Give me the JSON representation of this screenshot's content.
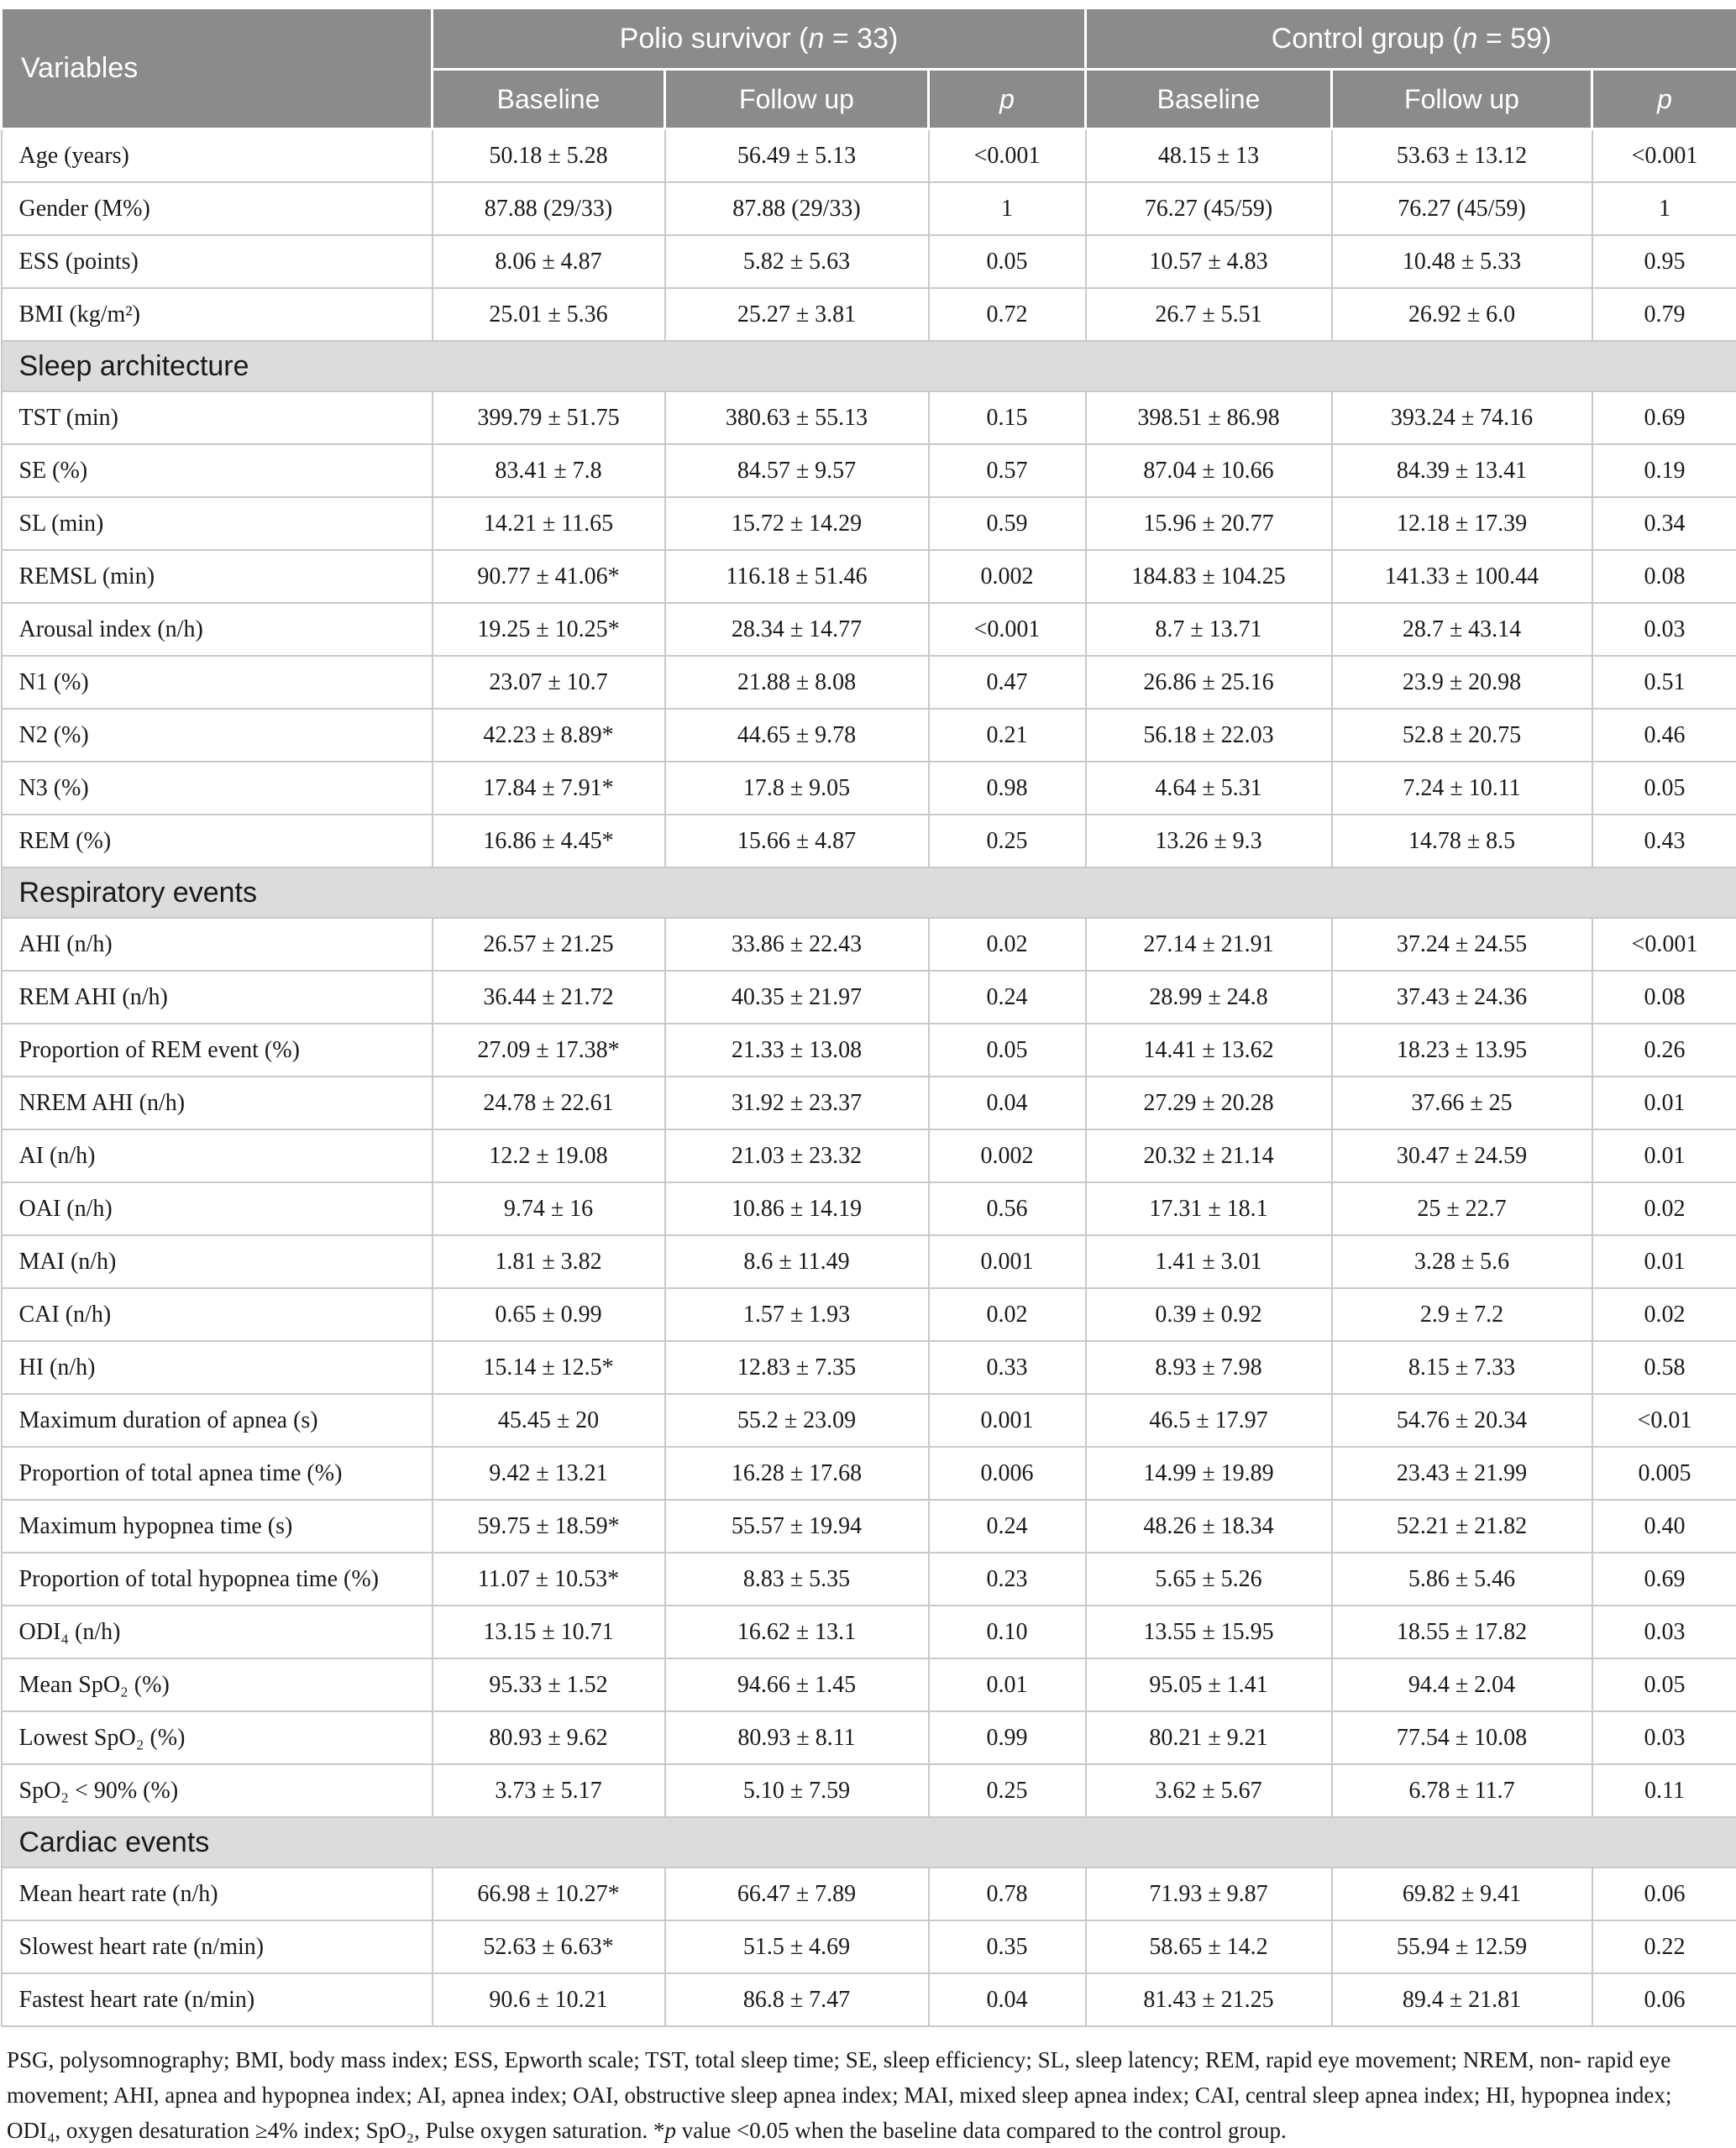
{
  "table": {
    "columns": {
      "variables_label": "Variables",
      "groups": [
        {
          "prefix": "Polio survivor (",
          "n": "n",
          "suffix": " = 33)"
        },
        {
          "prefix": "Control group (",
          "n": "n",
          "suffix": " = 59)"
        }
      ],
      "subheaders": [
        {
          "label": "Baseline",
          "italic": false
        },
        {
          "label": "Follow up",
          "italic": false
        },
        {
          "label": "p",
          "italic": true
        },
        {
          "label": "Baseline",
          "italic": false
        },
        {
          "label": "Follow up",
          "italic": false
        },
        {
          "label": "p",
          "italic": true
        }
      ]
    },
    "rows": [
      {
        "label": "Age (years)",
        "cells": [
          "50.18 ± 5.28",
          "56.49 ± 5.13",
          "<0.001",
          "48.15 ± 13",
          "53.63 ± 13.12",
          "<0.001"
        ]
      },
      {
        "label": "Gender (M%)",
        "cells": [
          "87.88 (29/33)",
          "87.88 (29/33)",
          "1",
          "76.27 (45/59)",
          "76.27 (45/59)",
          "1"
        ]
      },
      {
        "label": "ESS (points)",
        "cells": [
          "8.06 ± 4.87",
          "5.82 ± 5.63",
          "0.05",
          "10.57 ± 4.83",
          "10.48 ± 5.33",
          "0.95"
        ]
      },
      {
        "label": "BMI (kg/m²)",
        "cells": [
          "25.01 ± 5.36",
          "25.27 ± 3.81",
          "0.72",
          "26.7 ± 5.51",
          "26.92 ± 6.0",
          "0.79"
        ]
      },
      {
        "section": "Sleep architecture"
      },
      {
        "label": "TST (min)",
        "cells": [
          "399.79 ± 51.75",
          "380.63 ± 55.13",
          "0.15",
          "398.51 ± 86.98",
          "393.24 ± 74.16",
          "0.69"
        ]
      },
      {
        "label": "SE (%)",
        "cells": [
          "83.41 ± 7.8",
          "84.57 ± 9.57",
          "0.57",
          "87.04 ± 10.66",
          "84.39 ± 13.41",
          "0.19"
        ]
      },
      {
        "label": "SL (min)",
        "cells": [
          "14.21 ± 11.65",
          "15.72 ± 14.29",
          "0.59",
          "15.96 ± 20.77",
          "12.18 ± 17.39",
          "0.34"
        ]
      },
      {
        "label": "REMSL (min)",
        "cells": [
          "90.77 ± 41.06*",
          "116.18 ± 51.46",
          "0.002",
          "184.83 ± 104.25",
          "141.33 ± 100.44",
          "0.08"
        ]
      },
      {
        "label": "Arousal index (n/h)",
        "cells": [
          "19.25 ± 10.25*",
          "28.34 ± 14.77",
          "<0.001",
          "8.7 ± 13.71",
          "28.7 ± 43.14",
          "0.03"
        ]
      },
      {
        "label": "N1 (%)",
        "cells": [
          "23.07 ± 10.7",
          "21.88 ± 8.08",
          "0.47",
          "26.86 ± 25.16",
          "23.9 ± 20.98",
          "0.51"
        ]
      },
      {
        "label": "N2 (%)",
        "cells": [
          "42.23 ± 8.89*",
          "44.65 ± 9.78",
          "0.21",
          "56.18 ± 22.03",
          "52.8 ± 20.75",
          "0.46"
        ]
      },
      {
        "label": "N3 (%)",
        "cells": [
          "17.84 ± 7.91*",
          "17.8 ± 9.05",
          "0.98",
          "4.64 ± 5.31",
          "7.24 ± 10.11",
          "0.05"
        ]
      },
      {
        "label": "REM (%)",
        "cells": [
          "16.86 ± 4.45*",
          "15.66 ± 4.87",
          "0.25",
          "13.26 ± 9.3",
          "14.78 ± 8.5",
          "0.43"
        ]
      },
      {
        "section": "Respiratory events"
      },
      {
        "label": "AHI (n/h)",
        "cells": [
          "26.57 ± 21.25",
          "33.86 ± 22.43",
          "0.02",
          "27.14 ± 21.91",
          "37.24 ± 24.55",
          "<0.001"
        ]
      },
      {
        "label": "REM AHI (n/h)",
        "cells": [
          "36.44 ± 21.72",
          "40.35 ± 21.97",
          "0.24",
          "28.99 ± 24.8",
          "37.43 ± 24.36",
          "0.08"
        ]
      },
      {
        "label": "Proportion of REM event (%)",
        "cells": [
          "27.09 ± 17.38*",
          "21.33 ± 13.08",
          "0.05",
          "14.41 ± 13.62",
          "18.23 ± 13.95",
          "0.26"
        ]
      },
      {
        "label": "NREM AHI (n/h)",
        "cells": [
          "24.78 ± 22.61",
          "31.92 ± 23.37",
          "0.04",
          "27.29 ± 20.28",
          "37.66 ± 25",
          "0.01"
        ]
      },
      {
        "label": "AI (n/h)",
        "cells": [
          "12.2 ± 19.08",
          "21.03 ± 23.32",
          "0.002",
          "20.32 ± 21.14",
          "30.47 ± 24.59",
          "0.01"
        ]
      },
      {
        "label": "OAI (n/h)",
        "cells": [
          "9.74 ± 16",
          "10.86 ± 14.19",
          "0.56",
          "17.31 ± 18.1",
          "25 ± 22.7",
          "0.02"
        ]
      },
      {
        "label": "MAI (n/h)",
        "cells": [
          "1.81 ± 3.82",
          "8.6 ± 11.49",
          "0.001",
          "1.41 ± 3.01",
          "3.28 ± 5.6",
          "0.01"
        ]
      },
      {
        "label": "CAI (n/h)",
        "cells": [
          "0.65 ± 0.99",
          "1.57 ± 1.93",
          "0.02",
          "0.39 ± 0.92",
          "2.9 ± 7.2",
          "0.02"
        ]
      },
      {
        "label": "HI (n/h)",
        "cells": [
          "15.14 ± 12.5*",
          "12.83 ± 7.35",
          "0.33",
          "8.93 ± 7.98",
          "8.15 ± 7.33",
          "0.58"
        ]
      },
      {
        "label": "Maximum duration of apnea (s)",
        "cells": [
          "45.45 ± 20",
          "55.2 ± 23.09",
          "0.001",
          "46.5 ± 17.97",
          "54.76 ± 20.34",
          "<0.01"
        ]
      },
      {
        "label": "Proportion of total apnea time (%)",
        "cells": [
          "9.42 ± 13.21",
          "16.28 ± 17.68",
          "0.006",
          "14.99 ± 19.89",
          "23.43 ± 21.99",
          "0.005"
        ]
      },
      {
        "label": "Maximum hypopnea time (s)",
        "cells": [
          "59.75 ± 18.59*",
          "55.57 ± 19.94",
          "0.24",
          "48.26 ± 18.34",
          "52.21 ± 21.82",
          "0.40"
        ]
      },
      {
        "label": "Proportion of total hypopnea time (%)",
        "cells": [
          "11.07 ± 10.53*",
          "8.83 ± 5.35",
          "0.23",
          "5.65 ± 5.26",
          "5.86 ± 5.46",
          "0.69"
        ]
      },
      {
        "label": "ODI₄ (n/h)",
        "cells": [
          "13.15 ± 10.71",
          "16.62 ± 13.1",
          "0.10",
          "13.55 ± 15.95",
          "18.55 ± 17.82",
          "0.03"
        ]
      },
      {
        "label": "Mean SpO₂ (%)",
        "cells": [
          "95.33 ± 1.52",
          "94.66 ± 1.45",
          "0.01",
          "95.05 ± 1.41",
          "94.4 ± 2.04",
          "0.05"
        ]
      },
      {
        "label": "Lowest SpO₂ (%)",
        "cells": [
          "80.93 ± 9.62",
          "80.93 ± 8.11",
          "0.99",
          "80.21 ± 9.21",
          "77.54 ± 10.08",
          "0.03"
        ]
      },
      {
        "label": "SpO₂ < 90% (%)",
        "cells": [
          "3.73 ± 5.17",
          "5.10 ± 7.59",
          "0.25",
          "3.62 ± 5.67",
          "6.78 ± 11.7",
          "0.11"
        ]
      },
      {
        "section": "Cardiac events"
      },
      {
        "label": "Mean heart rate (n/h)",
        "cells": [
          "66.98 ± 10.27*",
          "66.47 ± 7.89",
          "0.78",
          "71.93 ± 9.87",
          "69.82 ± 9.41",
          "0.06"
        ]
      },
      {
        "label": "Slowest heart rate (n/min)",
        "cells": [
          "52.63 ± 6.63*",
          "51.5 ± 4.69",
          "0.35",
          "58.65 ± 14.2",
          "55.94 ± 12.59",
          "0.22"
        ]
      },
      {
        "label": "Fastest heart rate (n/min)",
        "cells": [
          "90.6 ± 10.21",
          "86.8 ± 7.47",
          "0.04",
          "81.43 ± 21.25",
          "89.4 ± 21.81",
          "0.06"
        ]
      }
    ]
  },
  "footnote": {
    "pre": "PSG, polysomnography; BMI, body mass index; ESS, Epworth scale; TST, total sleep time; SE, sleep efficiency; SL, sleep latency; REM, rapid eye movement; NREM, non- rapid eye movement; AHI, apnea and hypopnea index; AI, apnea index; OAI, obstructive sleep apnea index; MAI, mixed sleep apnea index; CAI, central sleep apnea index; HI, hypopnea index; ODI₄, oxygen desaturation ≥4% index; SpO₂, Pulse oxygen saturation. *",
    "p_italic": "p",
    "post": " value <0.05 when the baseline data compared to the control group."
  },
  "colors": {
    "header_bg": "#8b8b8b",
    "header_text": "#ffffff",
    "section_bg": "#dcdcdc",
    "border": "#c9c9c9",
    "text": "#1a1a1a"
  }
}
